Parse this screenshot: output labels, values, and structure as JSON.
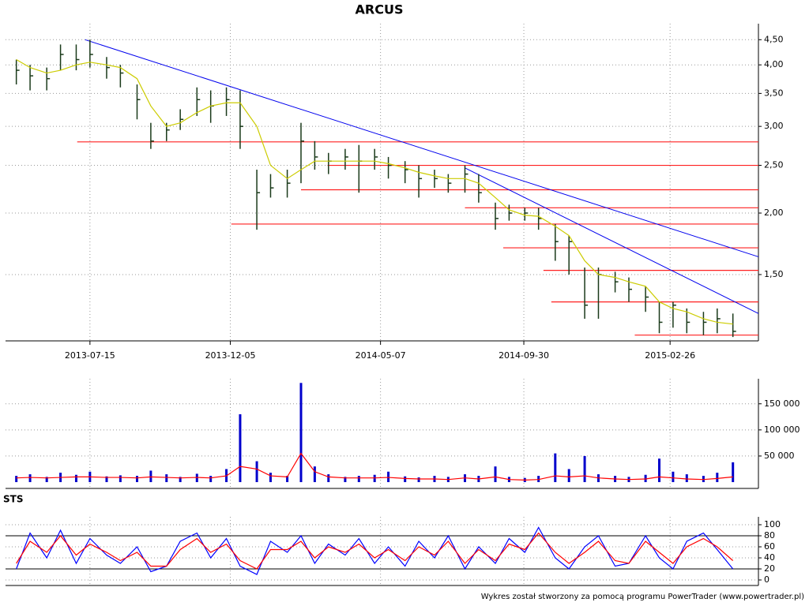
{
  "chart_data": [
    {
      "type": "ohlc",
      "title": "ARCUS",
      "log_scale": true,
      "grid": true,
      "x": [
        "2013-05-01",
        "2013-05-15",
        "2013-06-01",
        "2013-06-15",
        "2013-07-01",
        "2013-07-15",
        "2013-08-01",
        "2013-08-15",
        "2013-09-01",
        "2013-09-15",
        "2013-10-01",
        "2013-10-15",
        "2013-11-01",
        "2013-11-15",
        "2013-12-01",
        "2013-12-15",
        "2014-01-01",
        "2014-01-15",
        "2014-02-01",
        "2014-02-15",
        "2014-03-01",
        "2014-03-15",
        "2014-04-01",
        "2014-04-15",
        "2014-05-01",
        "2014-05-15",
        "2014-06-01",
        "2014-06-15",
        "2014-07-01",
        "2014-07-15",
        "2014-08-01",
        "2014-08-15",
        "2014-09-01",
        "2014-09-15",
        "2014-10-01",
        "2014-10-15",
        "2014-11-01",
        "2014-11-15",
        "2014-12-01",
        "2014-12-15",
        "2015-01-01",
        "2015-01-15",
        "2015-02-01",
        "2015-02-15",
        "2015-03-01",
        "2015-03-15",
        "2015-04-01",
        "2015-04-15",
        "2015-05-01"
      ],
      "high": [
        4.1,
        4.0,
        3.95,
        4.4,
        4.4,
        4.5,
        4.15,
        4.0,
        3.65,
        3.05,
        3.05,
        3.25,
        3.6,
        3.55,
        3.6,
        3.55,
        2.45,
        2.4,
        2.45,
        3.05,
        2.8,
        2.65,
        2.7,
        2.75,
        2.7,
        2.6,
        2.55,
        2.5,
        2.45,
        2.4,
        2.5,
        2.4,
        2.1,
        2.08,
        2.05,
        2.05,
        1.9,
        1.8,
        1.55,
        1.55,
        1.52,
        1.48,
        1.42,
        1.32,
        1.32,
        1.28,
        1.26,
        1.28,
        1.25
      ],
      "low": [
        3.65,
        3.55,
        3.55,
        3.9,
        3.9,
        3.95,
        3.75,
        3.6,
        3.1,
        2.7,
        2.8,
        2.95,
        3.15,
        3.05,
        3.15,
        2.7,
        1.85,
        2.15,
        2.15,
        2.3,
        2.45,
        2.4,
        2.45,
        2.2,
        2.45,
        2.35,
        2.3,
        2.15,
        2.25,
        2.2,
        2.2,
        2.1,
        1.85,
        1.93,
        1.93,
        1.85,
        1.6,
        1.5,
        1.22,
        1.22,
        1.38,
        1.32,
        1.26,
        1.14,
        1.17,
        1.14,
        1.13,
        1.14,
        1.12
      ],
      "close": [
        3.9,
        3.8,
        3.75,
        4.2,
        4.1,
        4.2,
        3.95,
        3.85,
        3.4,
        2.8,
        2.95,
        3.1,
        3.4,
        3.3,
        3.4,
        3.0,
        2.2,
        2.25,
        2.3,
        2.8,
        2.6,
        2.55,
        2.6,
        2.55,
        2.6,
        2.5,
        2.45,
        2.35,
        2.35,
        2.3,
        2.4,
        2.2,
        1.95,
        2.0,
        2.0,
        1.95,
        1.75,
        1.75,
        1.3,
        1.5,
        1.45,
        1.4,
        1.35,
        1.2,
        1.3,
        1.2,
        1.2,
        1.22,
        1.15
      ],
      "sma": [
        4.1,
        3.95,
        3.85,
        3.9,
        4.0,
        4.05,
        4.0,
        3.95,
        3.75,
        3.3,
        3.0,
        3.05,
        3.2,
        3.3,
        3.35,
        3.35,
        3.0,
        2.5,
        2.35,
        2.45,
        2.55,
        2.55,
        2.55,
        2.55,
        2.55,
        2.52,
        2.47,
        2.42,
        2.38,
        2.35,
        2.35,
        2.3,
        2.15,
        2.03,
        1.98,
        1.97,
        1.88,
        1.8,
        1.6,
        1.5,
        1.48,
        1.45,
        1.42,
        1.32,
        1.28,
        1.26,
        1.22,
        1.2,
        1.19
      ],
      "colors": {
        "bars": "#1a3a1a",
        "sma": "#cccc00",
        "trend": "#0000ee",
        "levels": "#ff2020"
      },
      "trend_lines": [
        {
          "x": [
            "2013-07-10",
            "2015-05-27"
          ],
          "y": [
            4.5,
            1.63
          ]
        },
        {
          "x": [
            "2014-08-01",
            "2015-05-27"
          ],
          "y": [
            2.47,
            1.25
          ]
        }
      ],
      "levels": [
        {
          "x": [
            "2013-07-02",
            "2015-05-27"
          ],
          "y": 2.79
        },
        {
          "x": [
            "2014-03-14",
            "2015-05-27"
          ],
          "y": 2.5
        },
        {
          "x": [
            "2014-02-15",
            "2015-05-27"
          ],
          "y": 2.23
        },
        {
          "x": [
            "2014-08-01",
            "2015-05-27"
          ],
          "y": 2.05
        },
        {
          "x": [
            "2013-12-06",
            "2015-05-27"
          ],
          "y": 1.9
        },
        {
          "x": [
            "2014-09-09",
            "2015-05-27"
          ],
          "y": 1.7
        },
        {
          "x": [
            "2014-10-20",
            "2015-05-27"
          ],
          "y": 1.53
        },
        {
          "x": [
            "2014-10-28",
            "2015-05-27"
          ],
          "y": 1.32
        },
        {
          "x": [
            "2015-01-21",
            "2015-05-27"
          ],
          "y": 1.13
        }
      ],
      "xlim": [
        "2013-04-20",
        "2015-05-27"
      ],
      "xticks": [
        "2013-07-15",
        "2013-12-05",
        "2014-05-07",
        "2014-09-30",
        "2015-02-26"
      ],
      "ylim": [
        1.1,
        4.85
      ],
      "yticks": [
        {
          "value": 1.5,
          "label": "1,50"
        },
        {
          "value": 2,
          "label": "2,00"
        },
        {
          "value": 2.5,
          "label": "2,50"
        },
        {
          "value": 3,
          "label": "3,00"
        },
        {
          "value": 3.5,
          "label": "3,50"
        },
        {
          "value": 4,
          "label": "4,00"
        },
        {
          "value": 4.5,
          "label": "4,50"
        }
      ]
    },
    {
      "type": "bar",
      "grid": true,
      "values": [
        12000,
        15000,
        10000,
        18000,
        14000,
        20000,
        11000,
        13000,
        12000,
        22000,
        15000,
        10000,
        16000,
        12000,
        25000,
        130000,
        40000,
        18000,
        12000,
        190000,
        30000,
        15000,
        10000,
        12000,
        14000,
        20000,
        11000,
        9000,
        12000,
        10000,
        15000,
        12000,
        30000,
        10000,
        8000,
        12000,
        55000,
        25000,
        50000,
        15000,
        12000,
        10000,
        14000,
        45000,
        20000,
        15000,
        12000,
        18000,
        38000
      ],
      "average": [
        8000,
        9000,
        8000,
        9000,
        10000,
        10000,
        9000,
        9000,
        8000,
        10000,
        9000,
        8000,
        9000,
        8000,
        12000,
        30000,
        25000,
        12000,
        10000,
        55000,
        20000,
        10000,
        8000,
        8000,
        8000,
        9000,
        7000,
        6000,
        6000,
        5000,
        8000,
        6000,
        10000,
        5000,
        4000,
        5000,
        12000,
        10000,
        12000,
        8000,
        6000,
        5000,
        6000,
        10000,
        8000,
        6000,
        5000,
        7000,
        10000
      ],
      "colors": {
        "bars": "#0000cc",
        "average": "#ff0000"
      },
      "ylim": [
        0,
        198000
      ],
      "yticks": [
        {
          "value": 50000,
          "label": "50 000"
        },
        {
          "value": 100000,
          "label": "100 000"
        },
        {
          "value": 150000,
          "label": "150 000"
        }
      ]
    },
    {
      "type": "line",
      "title": "STS",
      "grid": true,
      "series": [
        {
          "color": "#0000ff",
          "values": [
            20,
            85,
            40,
            90,
            30,
            75,
            45,
            30,
            60,
            15,
            25,
            70,
            85,
            40,
            75,
            25,
            10,
            70,
            50,
            80,
            30,
            65,
            45,
            75,
            30,
            60,
            25,
            70,
            40,
            80,
            20,
            60,
            30,
            75,
            50,
            95,
            40,
            20,
            60,
            80,
            25,
            30,
            80,
            40,
            20,
            70,
            85,
            55,
            20
          ]
        },
        {
          "color": "#ff0000",
          "values": [
            30,
            70,
            50,
            80,
            45,
            65,
            50,
            35,
            50,
            25,
            25,
            55,
            75,
            50,
            65,
            35,
            20,
            55,
            55,
            70,
            40,
            60,
            50,
            65,
            40,
            55,
            35,
            60,
            45,
            70,
            30,
            55,
            35,
            65,
            55,
            85,
            50,
            30,
            50,
            70,
            35,
            30,
            70,
            50,
            30,
            60,
            75,
            60,
            35
          ]
        }
      ],
      "reference_lines": [
        20,
        80
      ],
      "ylim": [
        0,
        100
      ],
      "yticks": [
        0,
        20,
        40,
        60,
        80,
        100
      ]
    }
  ],
  "footer": "Wykres został stworzony za pomocą programu PowerTrader (www.powertrader.pl)"
}
